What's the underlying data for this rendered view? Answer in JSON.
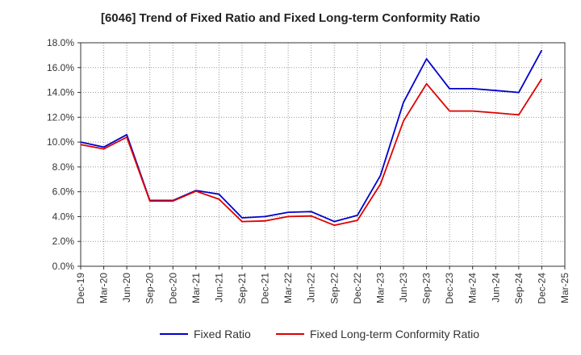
{
  "chart_data": {
    "type": "line",
    "title": "[6046]  Trend of Fixed Ratio and Fixed Long-term Conformity Ratio",
    "xlabel": "",
    "ylabel": "",
    "categories": [
      "Dec-19",
      "Mar-20",
      "Jun-20",
      "Sep-20",
      "Dec-20",
      "Mar-21",
      "Jun-21",
      "Sep-21",
      "Dec-21",
      "Mar-22",
      "Jun-22",
      "Sep-22",
      "Dec-22",
      "Mar-23",
      "Jun-23",
      "Sep-23",
      "Dec-23",
      "Mar-24",
      "Jun-24",
      "Sep-24",
      "Dec-24",
      "Mar-25"
    ],
    "ylim": [
      0,
      18
    ],
    "yticks": [
      0,
      2,
      4,
      6,
      8,
      10,
      12,
      14,
      16,
      18
    ],
    "ytick_labels": [
      "0.0%",
      "2.0%",
      "4.0%",
      "6.0%",
      "8.0%",
      "10.0%",
      "12.0%",
      "14.0%",
      "16.0%",
      "18.0%"
    ],
    "grid": true,
    "legend_position": "bottom",
    "series": [
      {
        "name": "Fixed Ratio",
        "color": "#0000cc",
        "values": [
          10.0,
          9.6,
          10.6,
          5.3,
          5.3,
          6.1,
          5.8,
          3.9,
          4.0,
          4.35,
          4.4,
          3.6,
          4.1,
          7.3,
          13.2,
          16.7,
          14.3,
          14.3,
          14.15,
          14.0,
          17.4,
          null
        ]
      },
      {
        "name": "Fixed Long-term Conformity Ratio",
        "color": "#dd0000",
        "values": [
          9.8,
          9.45,
          10.4,
          5.25,
          5.25,
          6.05,
          5.4,
          3.6,
          3.65,
          4.0,
          4.05,
          3.3,
          3.7,
          6.6,
          11.7,
          14.7,
          12.5,
          12.5,
          12.35,
          12.2,
          15.1,
          null
        ]
      }
    ]
  }
}
